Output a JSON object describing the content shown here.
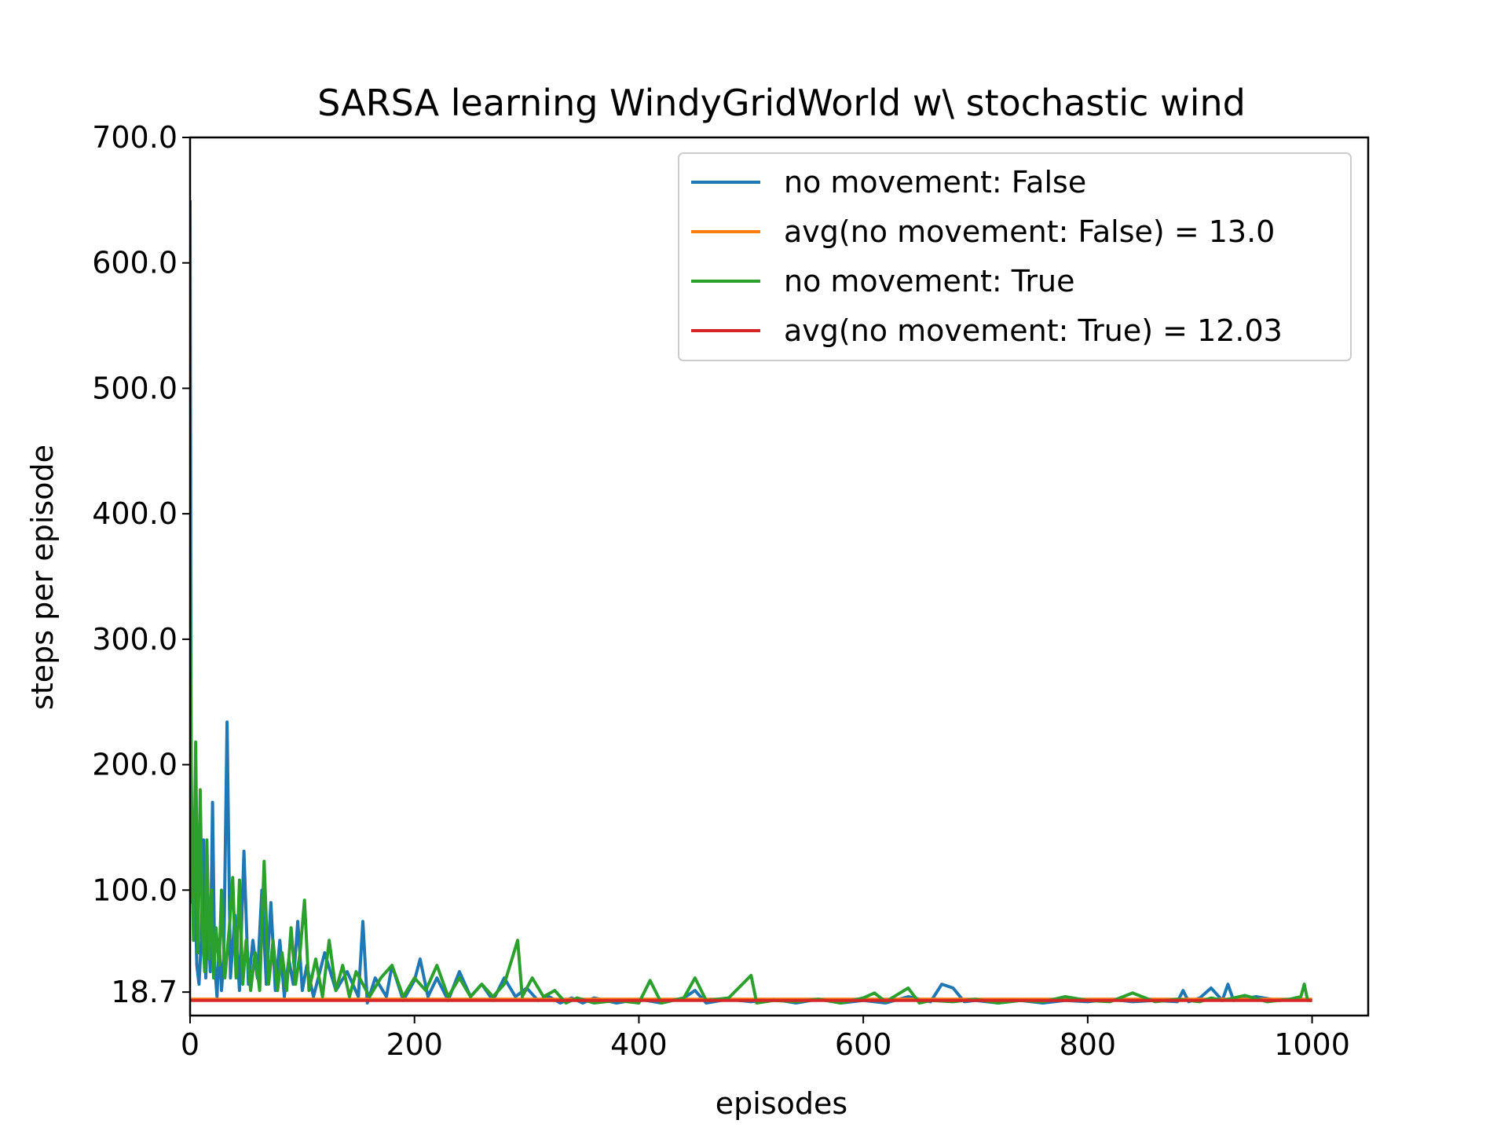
{
  "chart_data": {
    "type": "line",
    "title": "SARSA learning WindyGridWorld w\\ stochastic wind",
    "xlabel": "episodes",
    "ylabel": "steps per episode",
    "xlim": [
      0,
      1050
    ],
    "ylim": [
      0,
      700
    ],
    "x_ticks": [
      0,
      200,
      400,
      600,
      800,
      1000
    ],
    "x_tick_labels": [
      "0",
      "200",
      "400",
      "600",
      "800",
      "1000"
    ],
    "y_ticks": [
      18.7,
      100,
      200,
      300,
      400,
      500,
      600,
      700
    ],
    "y_tick_labels": [
      "18.7",
      "100.0",
      "200.0",
      "300.0",
      "400.0",
      "500.0",
      "600.0",
      "700.0"
    ],
    "grid": false,
    "legend_position": "top-right",
    "series": [
      {
        "name": "no movement: False",
        "color": "#1f77b4",
        "points": [
          [
            0,
            650
          ],
          [
            1,
            170
          ],
          [
            2,
            90
          ],
          [
            4,
            120
          ],
          [
            6,
            40
          ],
          [
            8,
            25
          ],
          [
            10,
            60
          ],
          [
            12,
            140
          ],
          [
            14,
            30
          ],
          [
            16,
            80
          ],
          [
            18,
            35
          ],
          [
            20,
            170
          ],
          [
            22,
            40
          ],
          [
            24,
            15
          ],
          [
            26,
            60
          ],
          [
            28,
            20
          ],
          [
            30,
            45
          ],
          [
            33,
            234
          ],
          [
            36,
            30
          ],
          [
            40,
            80
          ],
          [
            44,
            20
          ],
          [
            48,
            131
          ],
          [
            52,
            25
          ],
          [
            56,
            60
          ],
          [
            60,
            30
          ],
          [
            64,
            100
          ],
          [
            68,
            25
          ],
          [
            72,
            90
          ],
          [
            76,
            20
          ],
          [
            80,
            60
          ],
          [
            84,
            15
          ],
          [
            88,
            45
          ],
          [
            92,
            25
          ],
          [
            96,
            75
          ],
          [
            100,
            20
          ],
          [
            104,
            40
          ],
          [
            110,
            15
          ],
          [
            120,
            50
          ],
          [
            130,
            20
          ],
          [
            140,
            35
          ],
          [
            150,
            15
          ],
          [
            154,
            75
          ],
          [
            158,
            10
          ],
          [
            165,
            30
          ],
          [
            175,
            15
          ],
          [
            180,
            40
          ],
          [
            190,
            12
          ],
          [
            200,
            28
          ],
          [
            205,
            45
          ],
          [
            212,
            15
          ],
          [
            220,
            30
          ],
          [
            230,
            12
          ],
          [
            240,
            35
          ],
          [
            250,
            15
          ],
          [
            260,
            25
          ],
          [
            270,
            12
          ],
          [
            280,
            30
          ],
          [
            290,
            15
          ],
          [
            300,
            22
          ],
          [
            310,
            12
          ],
          [
            320,
            15
          ],
          [
            330,
            10
          ],
          [
            340,
            14
          ],
          [
            350,
            10
          ],
          [
            360,
            14
          ],
          [
            380,
            10
          ],
          [
            400,
            13
          ],
          [
            420,
            10
          ],
          [
            440,
            14
          ],
          [
            450,
            20
          ],
          [
            460,
            10
          ],
          [
            480,
            13
          ],
          [
            500,
            11
          ],
          [
            520,
            13
          ],
          [
            540,
            10
          ],
          [
            560,
            13
          ],
          [
            580,
            10
          ],
          [
            600,
            12
          ],
          [
            620,
            10
          ],
          [
            640,
            15
          ],
          [
            660,
            11
          ],
          [
            670,
            25
          ],
          [
            680,
            22
          ],
          [
            690,
            11
          ],
          [
            700,
            12
          ],
          [
            720,
            10
          ],
          [
            740,
            12
          ],
          [
            760,
            10
          ],
          [
            780,
            12
          ],
          [
            800,
            11
          ],
          [
            820,
            13
          ],
          [
            840,
            11
          ],
          [
            860,
            12
          ],
          [
            880,
            11
          ],
          [
            885,
            20
          ],
          [
            890,
            11
          ],
          [
            900,
            14
          ],
          [
            910,
            22
          ],
          [
            920,
            12
          ],
          [
            925,
            25
          ],
          [
            930,
            12
          ],
          [
            950,
            15
          ],
          [
            970,
            12
          ],
          [
            990,
            13
          ],
          [
            1000,
            12
          ]
        ]
      },
      {
        "name": "avg(no movement: False) = 13.0",
        "color": "#ff7f0e",
        "points": [
          [
            0,
            13.0
          ],
          [
            1000,
            13.0
          ]
        ]
      },
      {
        "name": "no movement: True",
        "color": "#2ca02c",
        "points": [
          [
            0,
            400
          ],
          [
            1,
            200
          ],
          [
            2,
            120
          ],
          [
            3,
            60
          ],
          [
            5,
            218
          ],
          [
            7,
            50
          ],
          [
            9,
            180
          ],
          [
            11,
            70
          ],
          [
            13,
            35
          ],
          [
            15,
            140
          ],
          [
            17,
            45
          ],
          [
            19,
            100
          ],
          [
            21,
            30
          ],
          [
            23,
            70
          ],
          [
            26,
            40
          ],
          [
            28,
            100
          ],
          [
            31,
            30
          ],
          [
            35,
            70
          ],
          [
            38,
            110
          ],
          [
            41,
            30
          ],
          [
            44,
            108
          ],
          [
            47,
            25
          ],
          [
            50,
            60
          ],
          [
            54,
            20
          ],
          [
            58,
            50
          ],
          [
            62,
            20
          ],
          [
            66,
            123
          ],
          [
            70,
            25
          ],
          [
            74,
            60
          ],
          [
            78,
            20
          ],
          [
            82,
            50
          ],
          [
            86,
            20
          ],
          [
            90,
            70
          ],
          [
            94,
            25
          ],
          [
            98,
            50
          ],
          [
            102,
            92
          ],
          [
            106,
            20
          ],
          [
            112,
            45
          ],
          [
            118,
            15
          ],
          [
            124,
            60
          ],
          [
            130,
            20
          ],
          [
            136,
            40
          ],
          [
            142,
            15
          ],
          [
            148,
            35
          ],
          [
            160,
            15
          ],
          [
            170,
            30
          ],
          [
            180,
            40
          ],
          [
            190,
            15
          ],
          [
            200,
            30
          ],
          [
            210,
            20
          ],
          [
            220,
            40
          ],
          [
            230,
            15
          ],
          [
            240,
            30
          ],
          [
            250,
            15
          ],
          [
            260,
            25
          ],
          [
            270,
            15
          ],
          [
            280,
            25
          ],
          [
            292,
            60
          ],
          [
            296,
            15
          ],
          [
            305,
            30
          ],
          [
            315,
            15
          ],
          [
            325,
            20
          ],
          [
            335,
            10
          ],
          [
            345,
            14
          ],
          [
            360,
            10
          ],
          [
            380,
            12
          ],
          [
            400,
            10
          ],
          [
            410,
            28
          ],
          [
            420,
            10
          ],
          [
            440,
            14
          ],
          [
            450,
            30
          ],
          [
            460,
            12
          ],
          [
            480,
            14
          ],
          [
            500,
            32
          ],
          [
            505,
            10
          ],
          [
            520,
            12
          ],
          [
            540,
            11
          ],
          [
            560,
            13
          ],
          [
            580,
            10
          ],
          [
            600,
            14
          ],
          [
            610,
            18
          ],
          [
            620,
            11
          ],
          [
            640,
            22
          ],
          [
            650,
            10
          ],
          [
            660,
            12
          ],
          [
            680,
            11
          ],
          [
            700,
            13
          ],
          [
            720,
            10
          ],
          [
            740,
            12
          ],
          [
            760,
            11
          ],
          [
            780,
            15
          ],
          [
            800,
            12
          ],
          [
            820,
            11
          ],
          [
            840,
            18
          ],
          [
            860,
            11
          ],
          [
            880,
            13
          ],
          [
            900,
            11
          ],
          [
            910,
            14
          ],
          [
            920,
            12
          ],
          [
            940,
            16
          ],
          [
            960,
            11
          ],
          [
            980,
            13
          ],
          [
            990,
            15
          ],
          [
            993,
            25
          ],
          [
            996,
            12
          ],
          [
            1000,
            12
          ]
        ]
      },
      {
        "name": "avg(no movement: True) = 12.03",
        "color": "#d62728",
        "points": [
          [
            0,
            12.03
          ],
          [
            1000,
            12.03
          ]
        ]
      }
    ]
  }
}
